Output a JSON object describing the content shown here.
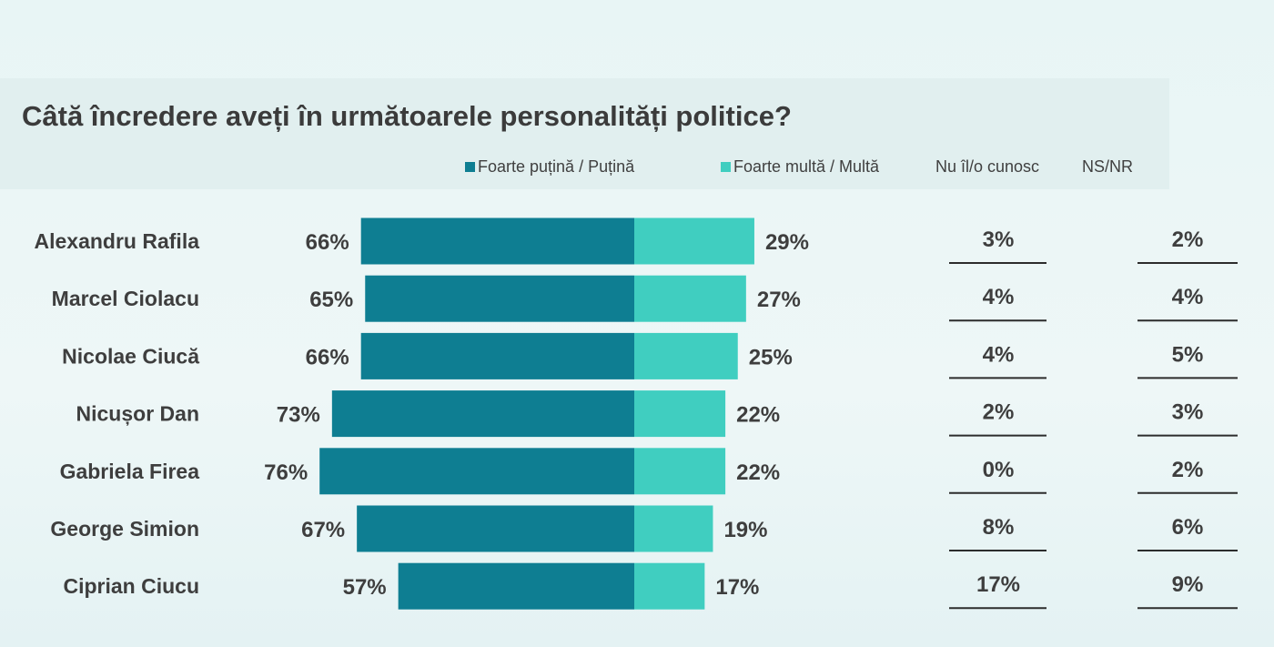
{
  "title": "Câtă încredere aveți în următoarele personalități politice?",
  "legend": [
    {
      "label": "Foarte puțină / Puțină",
      "color": "#0e7e92"
    },
    {
      "label": "Foarte multă / Multă",
      "color": "#40cec0"
    },
    {
      "label": "Nu îl/o cunosc"
    },
    {
      "label": "NS/NR"
    }
  ],
  "chart_data": {
    "type": "bar",
    "orientation": "horizontal-diverging",
    "categories": [
      "Alexandru Rafila",
      "Marcel Ciolacu",
      "Nicolae Ciucă",
      "Nicușor Dan",
      "Gabriela Firea",
      "George Simion",
      "Ciprian Ciucu"
    ],
    "series": [
      {
        "name": "Foarte puțină / Puțină",
        "color": "#0e7e92",
        "values": [
          66,
          65,
          66,
          73,
          76,
          67,
          57
        ],
        "labels": [
          "66%",
          "65%",
          "66%",
          "73%",
          "76%",
          "67%",
          "57%"
        ]
      },
      {
        "name": "Foarte multă / Multă",
        "color": "#40cec0",
        "values": [
          29,
          27,
          25,
          22,
          22,
          19,
          17
        ],
        "labels": [
          "29%",
          "27%",
          "25%",
          "22%",
          "22%",
          "19%",
          "17%"
        ]
      },
      {
        "name": "Nu îl/o cunosc",
        "values": [
          3,
          4,
          4,
          2,
          0,
          8,
          17
        ],
        "labels": [
          "3%",
          "4%",
          "4%",
          "2%",
          "0%",
          "8%",
          "17%"
        ]
      },
      {
        "name": "NS/NR",
        "values": [
          2,
          4,
          5,
          3,
          2,
          6,
          9
        ],
        "labels": [
          "2%",
          "4%",
          "5%",
          "3%",
          "2%",
          "6%",
          "9%"
        ]
      }
    ],
    "unit": "%"
  }
}
